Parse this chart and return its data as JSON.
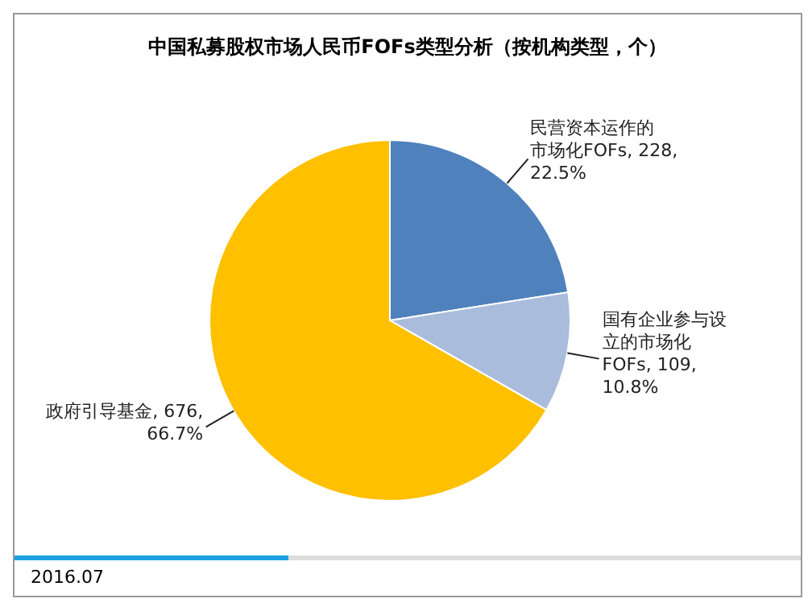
{
  "chart_data": {
    "type": "pie",
    "title": "中国私募股权市场人民币FOFs类型分析（按机构类型，个）",
    "categories": [
      "民营资本运作的市场化FOFs",
      "国有企业参与设立的市场化FOFs",
      "政府引导基金"
    ],
    "values": [
      228,
      109,
      676
    ],
    "value_labels": [
      "228, 22.5%",
      "109, 10.8%",
      "676, 66.7%"
    ],
    "colors": [
      "#4f81bd",
      "#a9bcdc",
      "#ffc000"
    ],
    "annotations": [
      "2016.07"
    ],
    "legend": false
  }
}
